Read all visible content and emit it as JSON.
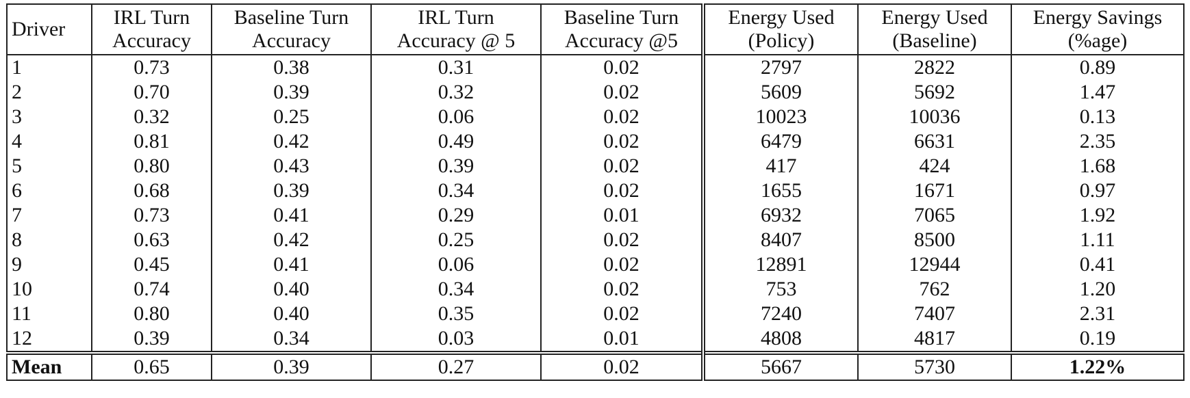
{
  "table": {
    "header": [
      [
        "Driver"
      ],
      [
        "IRL Turn",
        "Accuracy"
      ],
      [
        "Baseline Turn",
        "Accuracy"
      ],
      [
        "IRL Turn",
        "Accuracy @ 5"
      ],
      [
        "Baseline Turn",
        "Accuracy @5"
      ],
      [
        "Energy Used",
        "(Policy)"
      ],
      [
        "Energy Used",
        "(Baseline)"
      ],
      [
        "Energy Savings",
        "(%age)"
      ]
    ],
    "rows": [
      [
        "1",
        "0.73",
        "0.38",
        "0.31",
        "0.02",
        "2797",
        "2822",
        "0.89"
      ],
      [
        "2",
        "0.70",
        "0.39",
        "0.32",
        "0.02",
        "5609",
        "5692",
        "1.47"
      ],
      [
        "3",
        "0.32",
        "0.25",
        "0.06",
        "0.02",
        "10023",
        "10036",
        "0.13"
      ],
      [
        "4",
        "0.81",
        "0.42",
        "0.49",
        "0.02",
        "6479",
        "6631",
        "2.35"
      ],
      [
        "5",
        "0.80",
        "0.43",
        "0.39",
        "0.02",
        "417",
        "424",
        "1.68"
      ],
      [
        "6",
        "0.68",
        "0.39",
        "0.34",
        "0.02",
        "1655",
        "1671",
        "0.97"
      ],
      [
        "7",
        "0.73",
        "0.41",
        "0.29",
        "0.01",
        "6932",
        "7065",
        "1.92"
      ],
      [
        "8",
        "0.63",
        "0.42",
        "0.25",
        "0.02",
        "8407",
        "8500",
        "1.11"
      ],
      [
        "9",
        "0.45",
        "0.41",
        "0.06",
        "0.02",
        "12891",
        "12944",
        "0.41"
      ],
      [
        "10",
        "0.74",
        "0.40",
        "0.34",
        "0.02",
        "753",
        "762",
        "1.20"
      ],
      [
        "11",
        "0.80",
        "0.40",
        "0.35",
        "0.02",
        "7240",
        "7407",
        "2.31"
      ],
      [
        "12",
        "0.39",
        "0.34",
        "0.03",
        "0.01",
        "4808",
        "4817",
        "0.19"
      ]
    ],
    "mean": [
      "Mean",
      "0.65",
      "0.39",
      "0.27",
      "0.02",
      "5667",
      "5730",
      "1.22%"
    ]
  }
}
